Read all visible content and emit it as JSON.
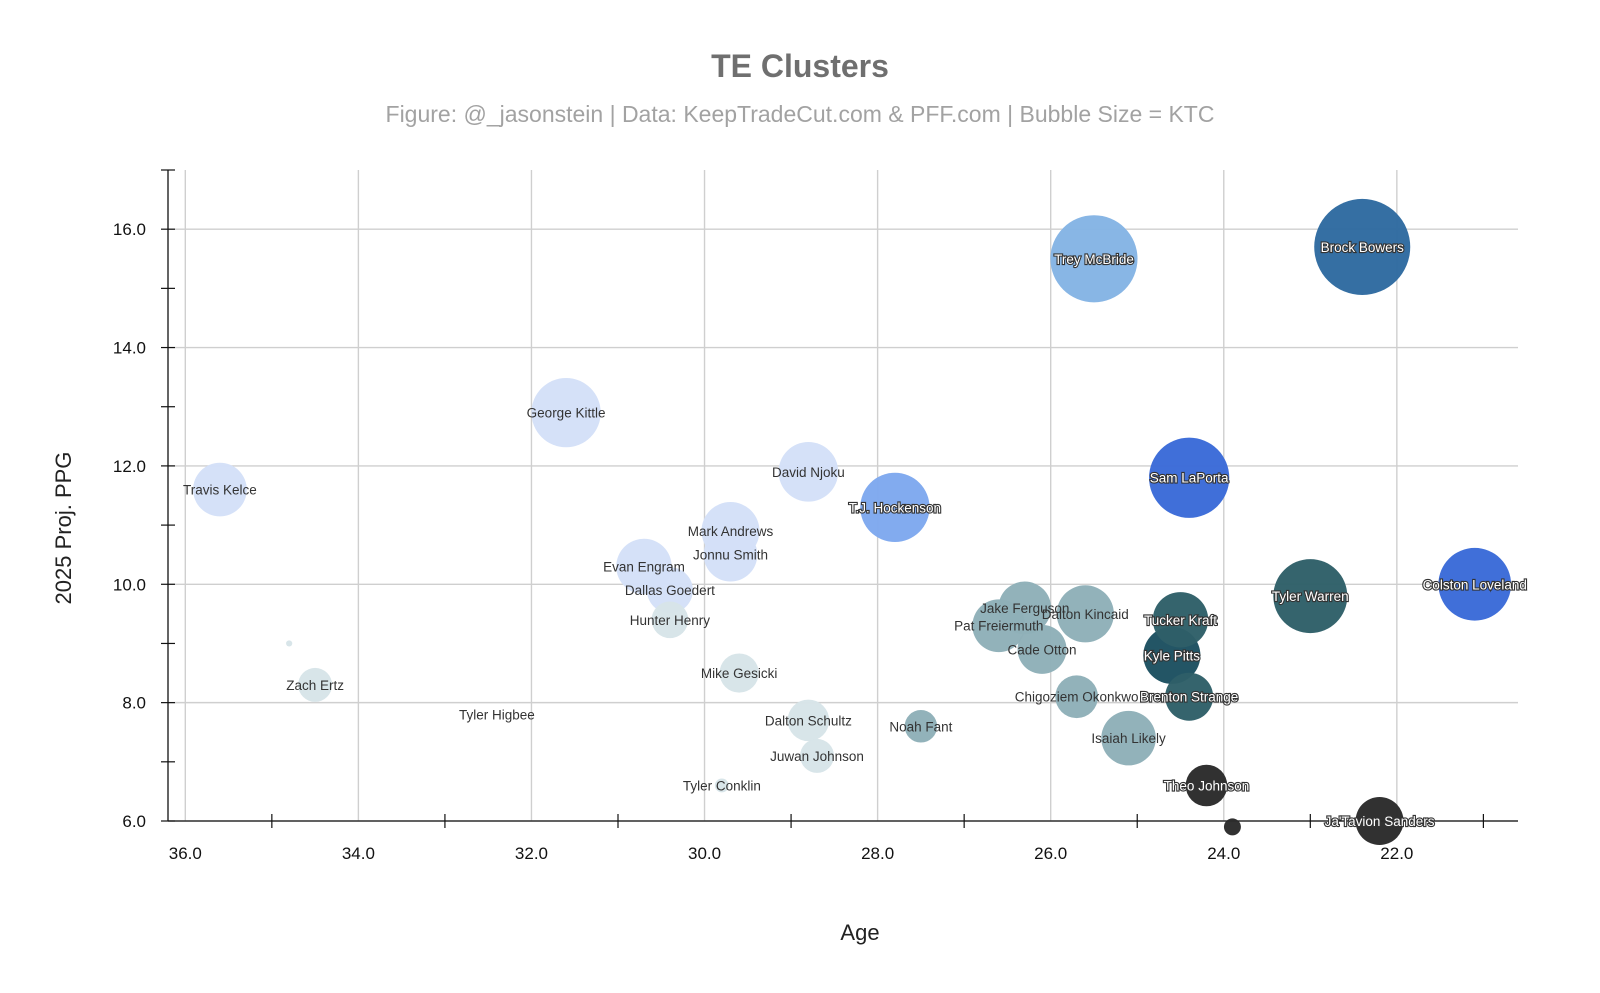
{
  "chart_data": {
    "type": "scatter",
    "title": "TE Clusters",
    "subtitle": "Figure: @_jasonstein | Data: KeepTradeCut.com & PFF.com | Bubble Size = KTC",
    "xlabel": "Age",
    "ylabel": "2025 Proj. PPG",
    "xlim": [
      36.2,
      20.6
    ],
    "ylim": [
      6.0,
      17.0
    ],
    "x_reversed": true,
    "x_ticks": [
      "36.0",
      "34.0",
      "32.0",
      "30.0",
      "28.0",
      "26.0",
      "24.0",
      "22.0"
    ],
    "y_ticks": [
      "6.0",
      "8.0",
      "10.0",
      "12.0",
      "14.0",
      "16.0"
    ],
    "grid": true,
    "legend": "none",
    "bubble_size": "KTC",
    "points": [
      {
        "name": "Brock Bowers",
        "age": 22.4,
        "ppg": 15.7,
        "ktc": 9600,
        "color": "#2e6aa0"
      },
      {
        "name": "Trey McBride",
        "age": 25.5,
        "ppg": 15.5,
        "ktc": 7900,
        "color": "#84b4e4"
      },
      {
        "name": "Sam LaPorta",
        "age": 24.4,
        "ppg": 11.8,
        "ktc": 6700,
        "color": "#3a6ad8"
      },
      {
        "name": "Colston Loveland",
        "age": 21.1,
        "ppg": 10.0,
        "ktc": 5500,
        "color": "#3a6ad8"
      },
      {
        "name": "Tyler Warren",
        "age": 23.0,
        "ppg": 9.8,
        "ktc": 5700,
        "color": "#2e5f68"
      },
      {
        "name": "George Kittle",
        "age": 31.6,
        "ppg": 12.9,
        "ktc": 5000,
        "color": "#d4e0f8"
      },
      {
        "name": "T.J. Hockenson",
        "age": 27.8,
        "ppg": 11.3,
        "ktc": 5000,
        "color": "#7ea8ee"
      },
      {
        "name": "David Njoku",
        "age": 28.8,
        "ppg": 11.9,
        "ktc": 3700,
        "color": "#d4e0f8"
      },
      {
        "name": "Mark Andrews",
        "age": 29.7,
        "ppg": 10.9,
        "ktc": 3500,
        "color": "#d4e0f8"
      },
      {
        "name": "Jonnu Smith",
        "age": 29.7,
        "ppg": 10.5,
        "ktc": 3000,
        "color": "#d4e0f8"
      },
      {
        "name": "Evan Engram",
        "age": 30.7,
        "ppg": 10.3,
        "ktc": 3200,
        "color": "#d4e0f8"
      },
      {
        "name": "Dallas Goedert",
        "age": 30.4,
        "ppg": 9.9,
        "ktc": 2200,
        "color": "#d4e0f8"
      },
      {
        "name": "Hunter Henry",
        "age": 30.4,
        "ppg": 9.4,
        "ktc": 1400,
        "color": "#d7e4e8"
      },
      {
        "name": "Travis Kelce",
        "age": 35.6,
        "ppg": 11.6,
        "ktc": 3000,
        "color": "#d4e0f8"
      },
      {
        "name": "Zach Ertz",
        "age": 34.5,
        "ppg": 8.3,
        "ktc": 1200,
        "color": "#d7e4e8"
      },
      {
        "name": "",
        "age": 34.8,
        "ppg": 9.0,
        "ktc": 40,
        "color": "#d7e4e8"
      },
      {
        "name": "Tyler Higbee",
        "age": 32.4,
        "ppg": 7.8,
        "ktc": 0,
        "color": "#d7e4e8"
      },
      {
        "name": "Mike Gesicki",
        "age": 29.6,
        "ppg": 8.5,
        "ktc": 1600,
        "color": "#d7e4e8"
      },
      {
        "name": "Dalton Schultz",
        "age": 28.8,
        "ppg": 7.7,
        "ktc": 1800,
        "color": "#d7e4e8"
      },
      {
        "name": "Juwan Johnson",
        "age": 28.7,
        "ppg": 7.1,
        "ktc": 1200,
        "color": "#d7e4e8"
      },
      {
        "name": "Tyler Conklin",
        "age": 29.8,
        "ppg": 6.6,
        "ktc": 200,
        "color": "#d7e4e8"
      },
      {
        "name": "Noah Fant",
        "age": 27.5,
        "ppg": 7.6,
        "ktc": 1100,
        "color": "#8eb0b8"
      },
      {
        "name": "Jake Ferguson",
        "age": 26.3,
        "ppg": 9.6,
        "ktc": 2900,
        "color": "#8eb0b8"
      },
      {
        "name": "Pat Freiermuth",
        "age": 26.6,
        "ppg": 9.3,
        "ktc": 2900,
        "color": "#8eb0b8"
      },
      {
        "name": "Dalton Kincaid",
        "age": 25.6,
        "ppg": 9.5,
        "ktc": 3400,
        "color": "#8eb0b8"
      },
      {
        "name": "Cade Otton",
        "age": 26.1,
        "ppg": 8.9,
        "ktc": 2500,
        "color": "#8eb0b8"
      },
      {
        "name": "Chigoziem Okonkwo",
        "age": 25.7,
        "ppg": 8.1,
        "ktc": 1900,
        "color": "#8eb0b8"
      },
      {
        "name": "Isaiah Likely",
        "age": 25.1,
        "ppg": 7.4,
        "ktc": 3100,
        "color": "#8eb0b8"
      },
      {
        "name": "Tucker Kraft",
        "age": 24.5,
        "ppg": 9.4,
        "ktc": 3200,
        "color": "#2e5f68"
      },
      {
        "name": "Kyle Pitts",
        "age": 24.6,
        "ppg": 8.8,
        "ktc": 3400,
        "color": "#1c5060"
      },
      {
        "name": "Brenton Strange",
        "age": 24.4,
        "ppg": 8.1,
        "ktc": 2400,
        "color": "#2e5f68"
      },
      {
        "name": "Theo Johnson",
        "age": 24.2,
        "ppg": 6.6,
        "ktc": 1800,
        "color": "#2a2a2a"
      },
      {
        "name": "Ja'Tavion Sanders",
        "age": 22.2,
        "ppg": 6.0,
        "ktc": 2400,
        "color": "#2a2a2a"
      },
      {
        "name": "",
        "age": 23.9,
        "ppg": 5.9,
        "ktc": 300,
        "color": "#2a2a2a"
      }
    ]
  }
}
